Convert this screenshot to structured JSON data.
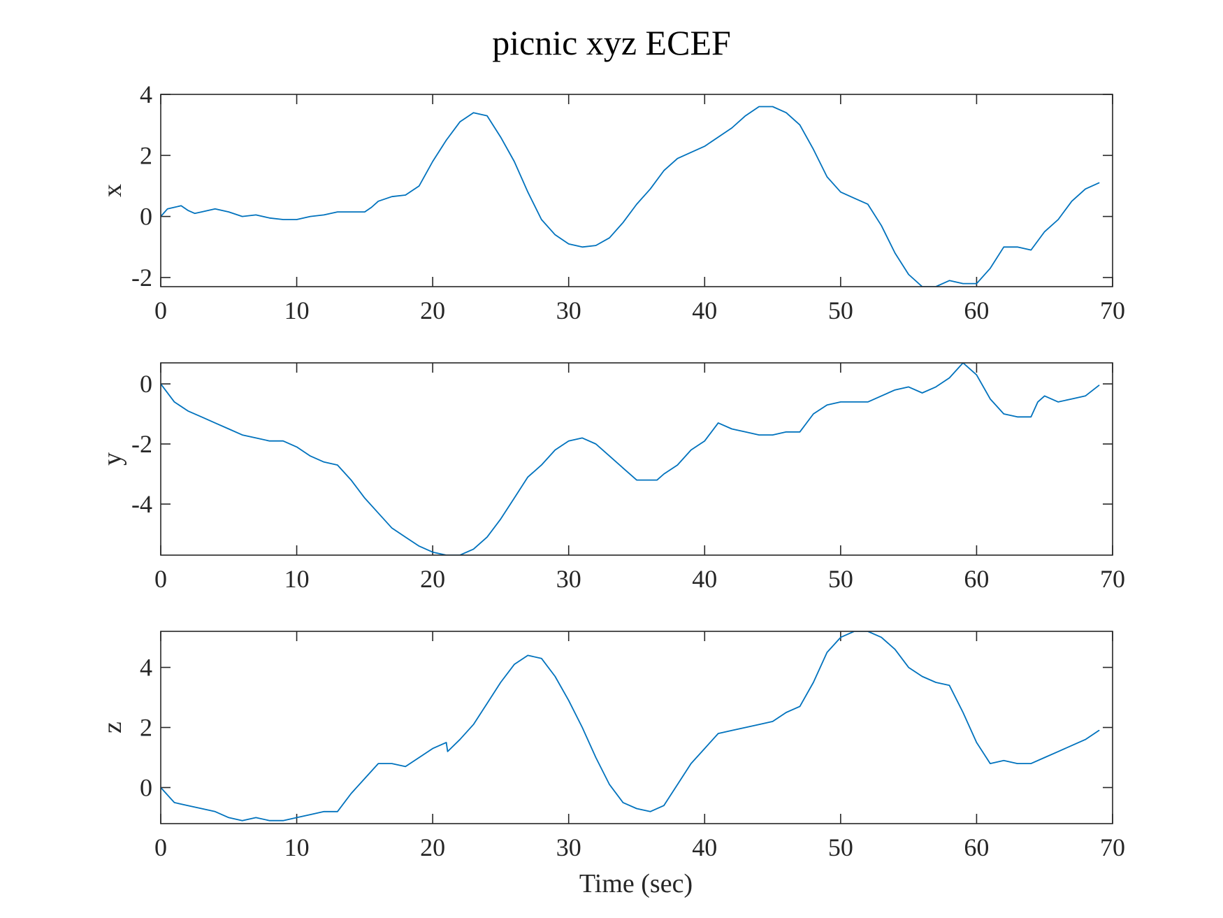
{
  "chart_data": {
    "title": "picnic xyz ECEF",
    "xlabel": "Time (sec)",
    "line_color": "#0072BD",
    "panels": [
      {
        "type": "line",
        "name": "panel-x",
        "ylabel": "x",
        "xlim": [
          0,
          70
        ],
        "ylim": [
          -2.3,
          4
        ],
        "xticks": [
          0,
          10,
          20,
          30,
          40,
          50,
          60,
          70
        ],
        "yticks": [
          -2,
          0,
          2,
          4
        ],
        "series": [
          {
            "x": [
              0,
              0.5,
              1,
              1.5,
              2,
              2.5,
              3,
              4,
              5,
              6,
              7,
              8,
              9,
              10,
              11,
              12,
              13,
              14,
              15,
              15.5,
              16,
              17,
              18,
              19,
              20,
              21,
              22,
              23,
              24,
              25,
              26,
              27,
              28,
              29,
              30,
              31,
              32,
              33,
              34,
              35,
              36,
              37,
              38,
              39,
              40,
              41,
              42,
              43,
              44,
              45,
              46,
              47,
              48,
              49,
              50,
              51,
              52,
              53,
              54,
              55,
              56,
              57,
              58,
              59,
              60,
              61,
              62,
              63,
              64,
              65,
              66,
              67,
              68,
              69
            ],
            "y": [
              0,
              0.25,
              0.3,
              0.35,
              0.2,
              0.1,
              0.15,
              0.25,
              0.15,
              0,
              0.05,
              -0.05,
              -0.1,
              -0.1,
              0,
              0.05,
              0.15,
              0.15,
              0.15,
              0.3,
              0.5,
              0.65,
              0.7,
              1.0,
              1.8,
              2.5,
              3.1,
              3.4,
              3.3,
              2.6,
              1.8,
              0.8,
              -0.1,
              -0.6,
              -0.9,
              -1.0,
              -0.95,
              -0.7,
              -0.2,
              0.4,
              0.9,
              1.5,
              1.9,
              2.1,
              2.3,
              2.6,
              2.9,
              3.3,
              3.6,
              3.6,
              3.4,
              3.0,
              2.2,
              1.3,
              0.8,
              0.6,
              0.4,
              -0.3,
              -1.2,
              -1.9,
              -2.3,
              -2.3,
              -2.1,
              -2.2,
              -2.2,
              -1.7,
              -1.0,
              -1.0,
              -1.1,
              -0.5,
              -0.1,
              0.5,
              0.9,
              1.1
            ]
          }
        ]
      },
      {
        "type": "line",
        "name": "panel-y",
        "ylabel": "y",
        "xlim": [
          0,
          70
        ],
        "ylim": [
          -5.7,
          0.7
        ],
        "xticks": [
          0,
          10,
          20,
          30,
          40,
          50,
          60,
          70
        ],
        "yticks": [
          -4,
          -2,
          0
        ],
        "series": [
          {
            "x": [
              0,
              1,
              2,
              3,
              4,
              5,
              6,
              7,
              8,
              9,
              10,
              11,
              12,
              13,
              14,
              15,
              16,
              17,
              18,
              19,
              20,
              21,
              22,
              23,
              24,
              25,
              26,
              27,
              28,
              29,
              30,
              31,
              32,
              33,
              34,
              35,
              36,
              36.5,
              37,
              38,
              39,
              40,
              41,
              42,
              43,
              44,
              45,
              46,
              47,
              48,
              49,
              50,
              51,
              52,
              53,
              54,
              55,
              56,
              57,
              58,
              59,
              60,
              61,
              62,
              63,
              64,
              64.5,
              65,
              66,
              67,
              68,
              69
            ],
            "y": [
              0,
              -0.6,
              -0.9,
              -1.1,
              -1.3,
              -1.5,
              -1.7,
              -1.8,
              -1.9,
              -1.9,
              -2.1,
              -2.4,
              -2.6,
              -2.7,
              -3.2,
              -3.8,
              -4.3,
              -4.8,
              -5.1,
              -5.4,
              -5.6,
              -5.7,
              -5.7,
              -5.5,
              -5.1,
              -4.5,
              -3.8,
              -3.1,
              -2.7,
              -2.2,
              -1.9,
              -1.8,
              -2.0,
              -2.4,
              -2.8,
              -3.2,
              -3.2,
              -3.2,
              -3.0,
              -2.7,
              -2.2,
              -1.9,
              -1.3,
              -1.5,
              -1.6,
              -1.7,
              -1.7,
              -1.6,
              -1.6,
              -1.0,
              -0.7,
              -0.6,
              -0.6,
              -0.6,
              -0.4,
              -0.2,
              -0.1,
              -0.3,
              -0.1,
              0.2,
              0.7,
              0.3,
              -0.5,
              -1.0,
              -1.1,
              -1.1,
              -0.6,
              -0.4,
              -0.6,
              -0.5,
              -0.4,
              -0.05
            ]
          }
        ]
      },
      {
        "type": "line",
        "name": "panel-z",
        "ylabel": "z",
        "xlim": [
          0,
          70
        ],
        "ylim": [
          -1.2,
          5.2
        ],
        "xticks": [
          0,
          10,
          20,
          30,
          40,
          50,
          60,
          70
        ],
        "yticks": [
          0,
          2,
          4
        ],
        "series": [
          {
            "x": [
              0,
              1,
              2,
              3,
              4,
              5,
              6,
              7,
              8,
              9,
              10,
              11,
              12,
              13,
              14,
              15,
              16,
              17,
              18,
              19,
              20,
              21,
              21.1,
              22,
              23,
              24,
              25,
              26,
              27,
              28,
              29,
              30,
              31,
              32,
              33,
              34,
              35,
              36,
              37,
              38,
              39,
              40,
              41,
              42,
              43,
              44,
              45,
              46,
              47,
              48,
              49,
              50,
              51,
              52,
              53,
              54,
              55,
              56,
              57,
              58,
              59,
              60,
              61,
              62,
              63,
              64,
              65,
              66,
              67,
              68,
              69
            ],
            "y": [
              0,
              -0.5,
              -0.6,
              -0.7,
              -0.8,
              -1.0,
              -1.1,
              -1.0,
              -1.1,
              -1.1,
              -1.0,
              -0.9,
              -0.8,
              -0.8,
              -0.2,
              0.3,
              0.8,
              0.8,
              0.7,
              1.0,
              1.3,
              1.5,
              1.2,
              1.6,
              2.1,
              2.8,
              3.5,
              4.1,
              4.4,
              4.3,
              3.7,
              2.9,
              2.0,
              1.0,
              0.1,
              -0.5,
              -0.7,
              -0.8,
              -0.6,
              0.1,
              0.8,
              1.3,
              1.8,
              1.9,
              2.0,
              2.1,
              2.2,
              2.5,
              2.7,
              3.5,
              4.5,
              5.0,
              5.2,
              5.2,
              5.0,
              4.6,
              4.0,
              3.7,
              3.5,
              3.4,
              2.5,
              1.5,
              0.8,
              0.9,
              0.8,
              0.8,
              1.0,
              1.2,
              1.4,
              1.6,
              1.9
            ]
          }
        ]
      }
    ]
  }
}
